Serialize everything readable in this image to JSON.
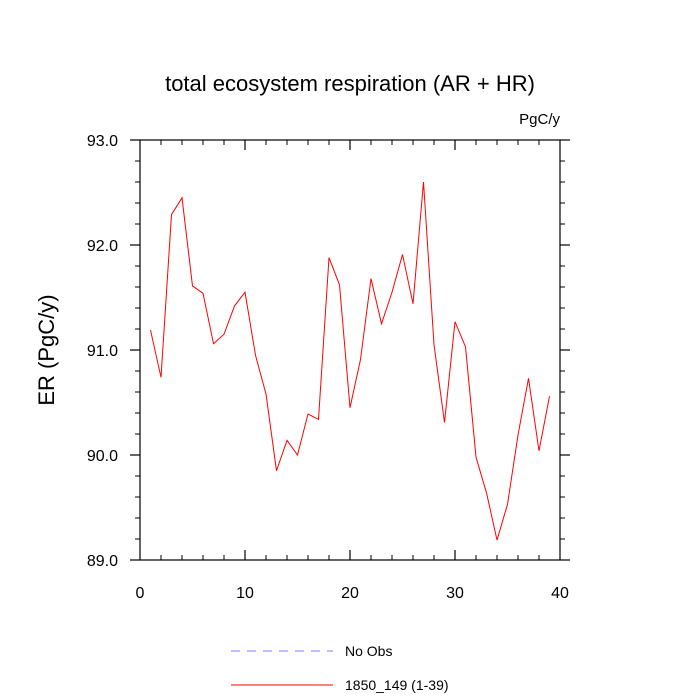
{
  "chart_data": {
    "type": "line",
    "title": "total ecosystem respiration (AR + HR)",
    "units_label": "PgC/y",
    "ylabel": "ER  (PgC/y)",
    "xlabel": "",
    "xlim": [
      0,
      40
    ],
    "ylim": [
      89.0,
      93.0
    ],
    "x_ticks": [
      0,
      10,
      20,
      30,
      40
    ],
    "x_tick_labels": [
      "0",
      "10",
      "20",
      "30",
      "40"
    ],
    "y_ticks": [
      89.0,
      90.0,
      91.0,
      92.0,
      93.0
    ],
    "y_tick_labels": [
      "89.0",
      "90.0",
      "91.0",
      "92.0",
      "93.0"
    ],
    "grid": false,
    "legend_position": "bottom-center",
    "series": [
      {
        "name": "No Obs",
        "color": "#8080ff",
        "style": "dashed",
        "x": [],
        "values": []
      },
      {
        "name": "1850_149 (1-39)",
        "color": "#ff0000",
        "style": "solid",
        "x": [
          1,
          2,
          3,
          4,
          5,
          6,
          7,
          8,
          9,
          10,
          11,
          12,
          13,
          14,
          15,
          16,
          17,
          18,
          19,
          20,
          21,
          22,
          23,
          24,
          25,
          26,
          27,
          28,
          29,
          30,
          31,
          32,
          33,
          34,
          35,
          36,
          37,
          38,
          39
        ],
        "values": [
          91.19,
          90.74,
          92.29,
          92.45,
          91.61,
          91.54,
          91.06,
          91.15,
          91.42,
          91.55,
          90.95,
          90.58,
          89.85,
          90.14,
          90.0,
          90.39,
          90.34,
          91.88,
          91.62,
          90.45,
          90.91,
          91.68,
          91.25,
          91.55,
          91.91,
          91.44,
          92.6,
          91.05,
          90.31,
          91.27,
          91.03,
          89.98,
          89.64,
          89.19,
          89.53,
          90.19,
          90.73,
          90.04,
          90.56
        ]
      }
    ]
  }
}
